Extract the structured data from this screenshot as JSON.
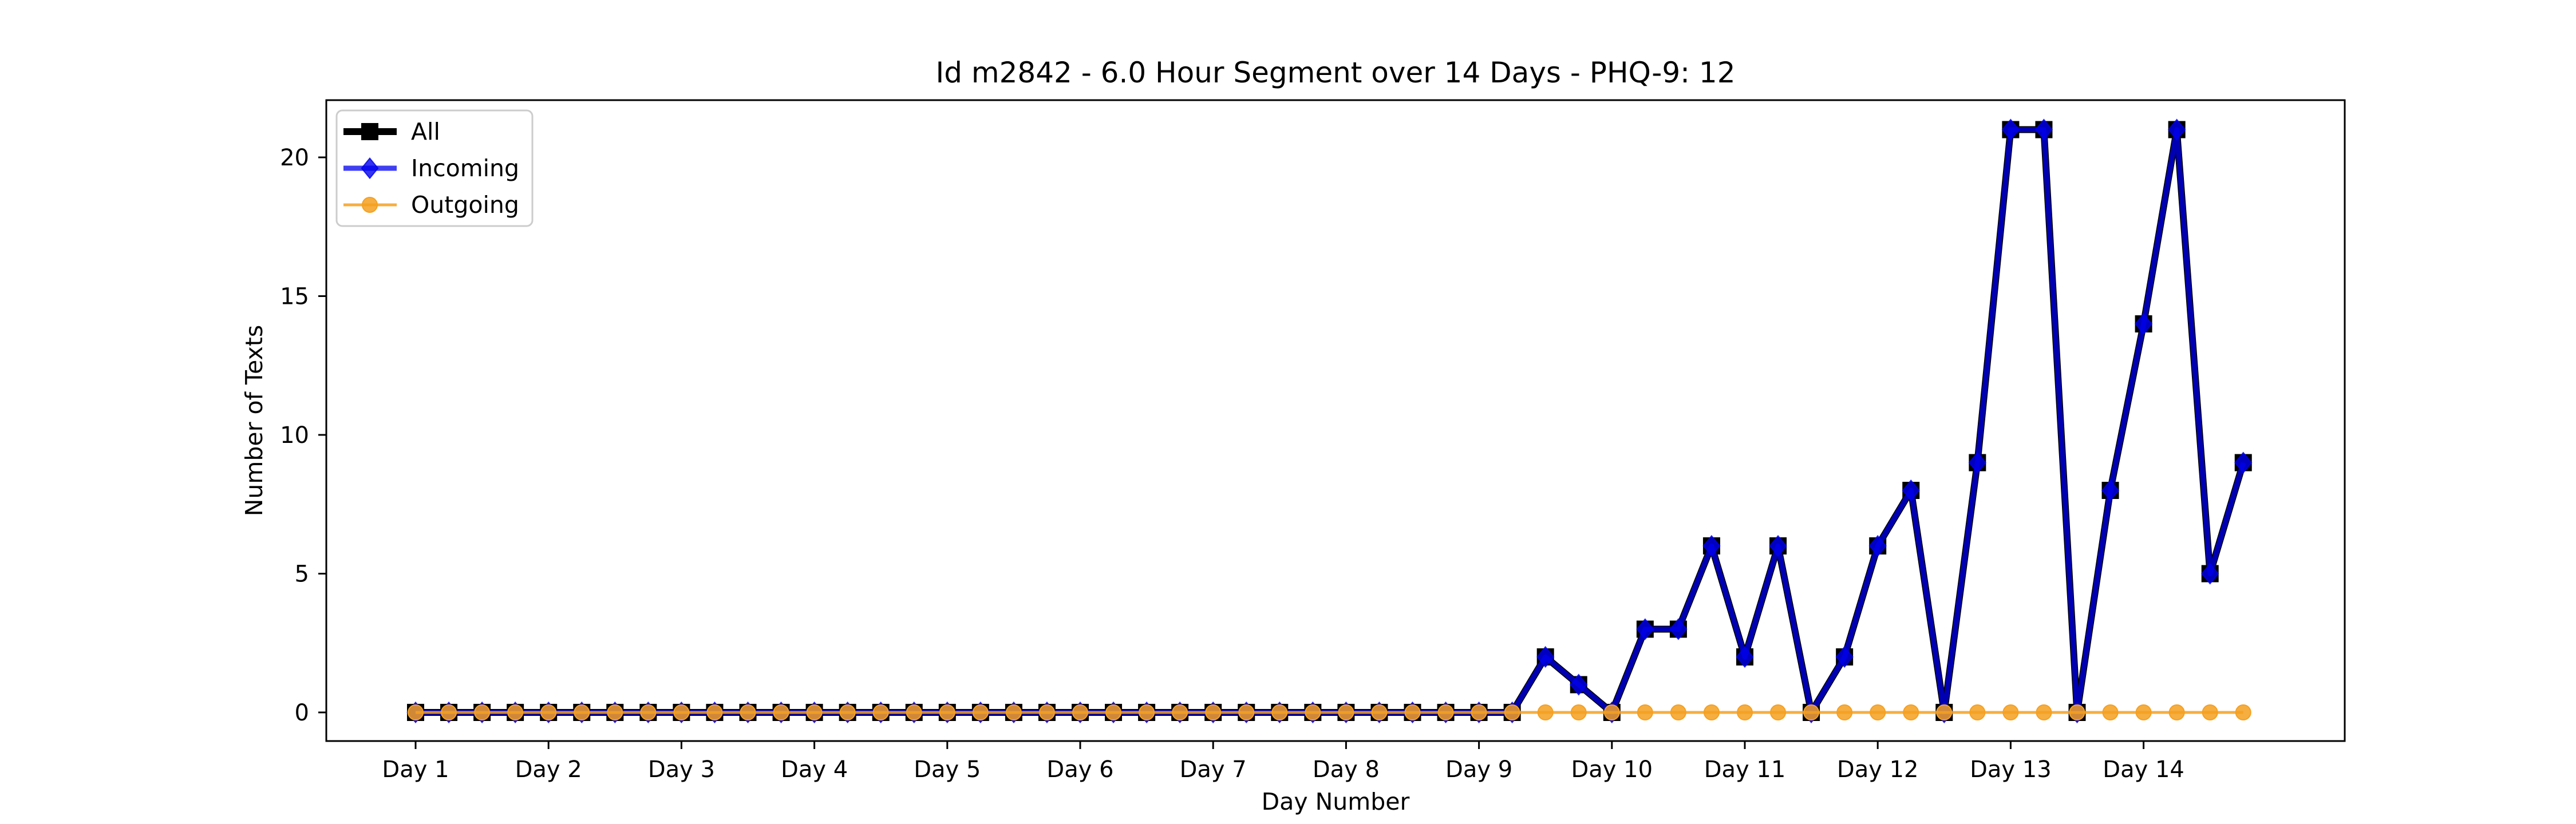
{
  "chart_data": {
    "type": "line",
    "title": "Id m2842 - 6.0 Hour Segment over 14 Days - PHQ-9: 12",
    "xlabel": "Day Number",
    "ylabel": "Number of Texts",
    "x_tick_labels": [
      "Day 1",
      "Day 2",
      "Day 3",
      "Day 4",
      "Day 5",
      "Day 6",
      "Day 7",
      "Day 8",
      "Day 9",
      "Day 10",
      "Day 11",
      "Day 12",
      "Day 13",
      "Day 14"
    ],
    "y_ticks": [
      0,
      5,
      10,
      15,
      20
    ],
    "ylim": [
      -0.5,
      22
    ],
    "segments_per_day": 4,
    "grid": false,
    "legend_position": "upper-left",
    "series": [
      {
        "name": "All",
        "color": "#000000",
        "marker": "square",
        "values": [
          0,
          0,
          0,
          0,
          0,
          0,
          0,
          0,
          0,
          0,
          0,
          0,
          0,
          0,
          0,
          0,
          0,
          0,
          0,
          0,
          0,
          0,
          0,
          0,
          0,
          0,
          0,
          0,
          0,
          0,
          0,
          0,
          0,
          0,
          2,
          1,
          0,
          3,
          3,
          6,
          2,
          6,
          0,
          2,
          6,
          8,
          0,
          9,
          21,
          21,
          0,
          8,
          14,
          21,
          5,
          9
        ]
      },
      {
        "name": "Incoming",
        "color": "#0000ee",
        "marker": "diamond",
        "values": [
          0,
          0,
          0,
          0,
          0,
          0,
          0,
          0,
          0,
          0,
          0,
          0,
          0,
          0,
          0,
          0,
          0,
          0,
          0,
          0,
          0,
          0,
          0,
          0,
          0,
          0,
          0,
          0,
          0,
          0,
          0,
          0,
          0,
          0,
          2,
          1,
          0,
          3,
          3,
          6,
          2,
          6,
          0,
          2,
          6,
          8,
          0,
          9,
          21,
          21,
          0,
          8,
          14,
          21,
          5,
          9
        ]
      },
      {
        "name": "Outgoing",
        "color": "#f5a020",
        "marker": "circle",
        "values": [
          0,
          0,
          0,
          0,
          0,
          0,
          0,
          0,
          0,
          0,
          0,
          0,
          0,
          0,
          0,
          0,
          0,
          0,
          0,
          0,
          0,
          0,
          0,
          0,
          0,
          0,
          0,
          0,
          0,
          0,
          0,
          0,
          0,
          0,
          0,
          0,
          0,
          0,
          0,
          0,
          0,
          0,
          0,
          0,
          0,
          0,
          0,
          0,
          0,
          0,
          0,
          0,
          0,
          0,
          0,
          0
        ]
      }
    ]
  }
}
